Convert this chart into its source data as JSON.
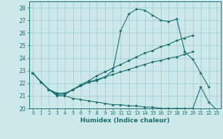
{
  "xlabel": "Humidex (Indice chaleur)",
  "bg_color": "#cce8e8",
  "line_color": "#1a6e6e",
  "grid_color": "#99cccc",
  "xlim": [
    -0.5,
    23.5
  ],
  "ylim": [
    20,
    28.5
  ],
  "xticks": [
    0,
    1,
    2,
    3,
    4,
    5,
    6,
    7,
    8,
    9,
    10,
    11,
    12,
    13,
    14,
    15,
    16,
    17,
    18,
    19,
    20,
    21,
    22,
    23
  ],
  "yticks": [
    20,
    21,
    22,
    23,
    24,
    25,
    26,
    27,
    28
  ],
  "line1_x": [
    0,
    1,
    2,
    3,
    4,
    5,
    6,
    7,
    8,
    9,
    10,
    11,
    12,
    13,
    14,
    15,
    16,
    17,
    18,
    19,
    20,
    21,
    22
  ],
  "line1_y": [
    22.8,
    22.1,
    21.5,
    21.1,
    21.1,
    21.5,
    21.8,
    22.1,
    22.2,
    22.5,
    23.0,
    26.2,
    27.5,
    27.9,
    27.8,
    27.4,
    27.0,
    26.9,
    27.1,
    24.5,
    23.9,
    22.8,
    21.7
  ],
  "line2_x": [
    0,
    1,
    2,
    3,
    4,
    5,
    6,
    7,
    8,
    9,
    10,
    11,
    12,
    13,
    14,
    15,
    16,
    17,
    18,
    19,
    20
  ],
  "line2_y": [
    22.8,
    22.1,
    21.5,
    21.2,
    21.2,
    21.5,
    21.9,
    22.2,
    22.6,
    22.9,
    23.2,
    23.5,
    23.8,
    24.1,
    24.4,
    24.6,
    24.9,
    25.1,
    25.4,
    25.6,
    25.8
  ],
  "line3_x": [
    0,
    1,
    2,
    3,
    4,
    5,
    6,
    7,
    8,
    9,
    10,
    11,
    12,
    13,
    14,
    15,
    16,
    17,
    18,
    19,
    20
  ],
  "line3_y": [
    22.8,
    22.1,
    21.5,
    21.2,
    21.2,
    21.5,
    21.8,
    22.1,
    22.3,
    22.5,
    22.7,
    22.9,
    23.1,
    23.3,
    23.5,
    23.7,
    23.8,
    24.0,
    24.1,
    24.3,
    24.5
  ],
  "line4_x": [
    0,
    1,
    2,
    3,
    4,
    5,
    6,
    7,
    8,
    9,
    10,
    11,
    12,
    13,
    14,
    15,
    16,
    17,
    18,
    19,
    20,
    21,
    22,
    23
  ],
  "line4_y": [
    22.8,
    22.1,
    21.5,
    21.0,
    21.0,
    20.8,
    20.7,
    20.6,
    20.5,
    20.4,
    20.3,
    20.3,
    20.2,
    20.2,
    20.1,
    20.1,
    20.0,
    20.0,
    20.0,
    20.0,
    20.0,
    21.7,
    20.5,
    19.9
  ]
}
